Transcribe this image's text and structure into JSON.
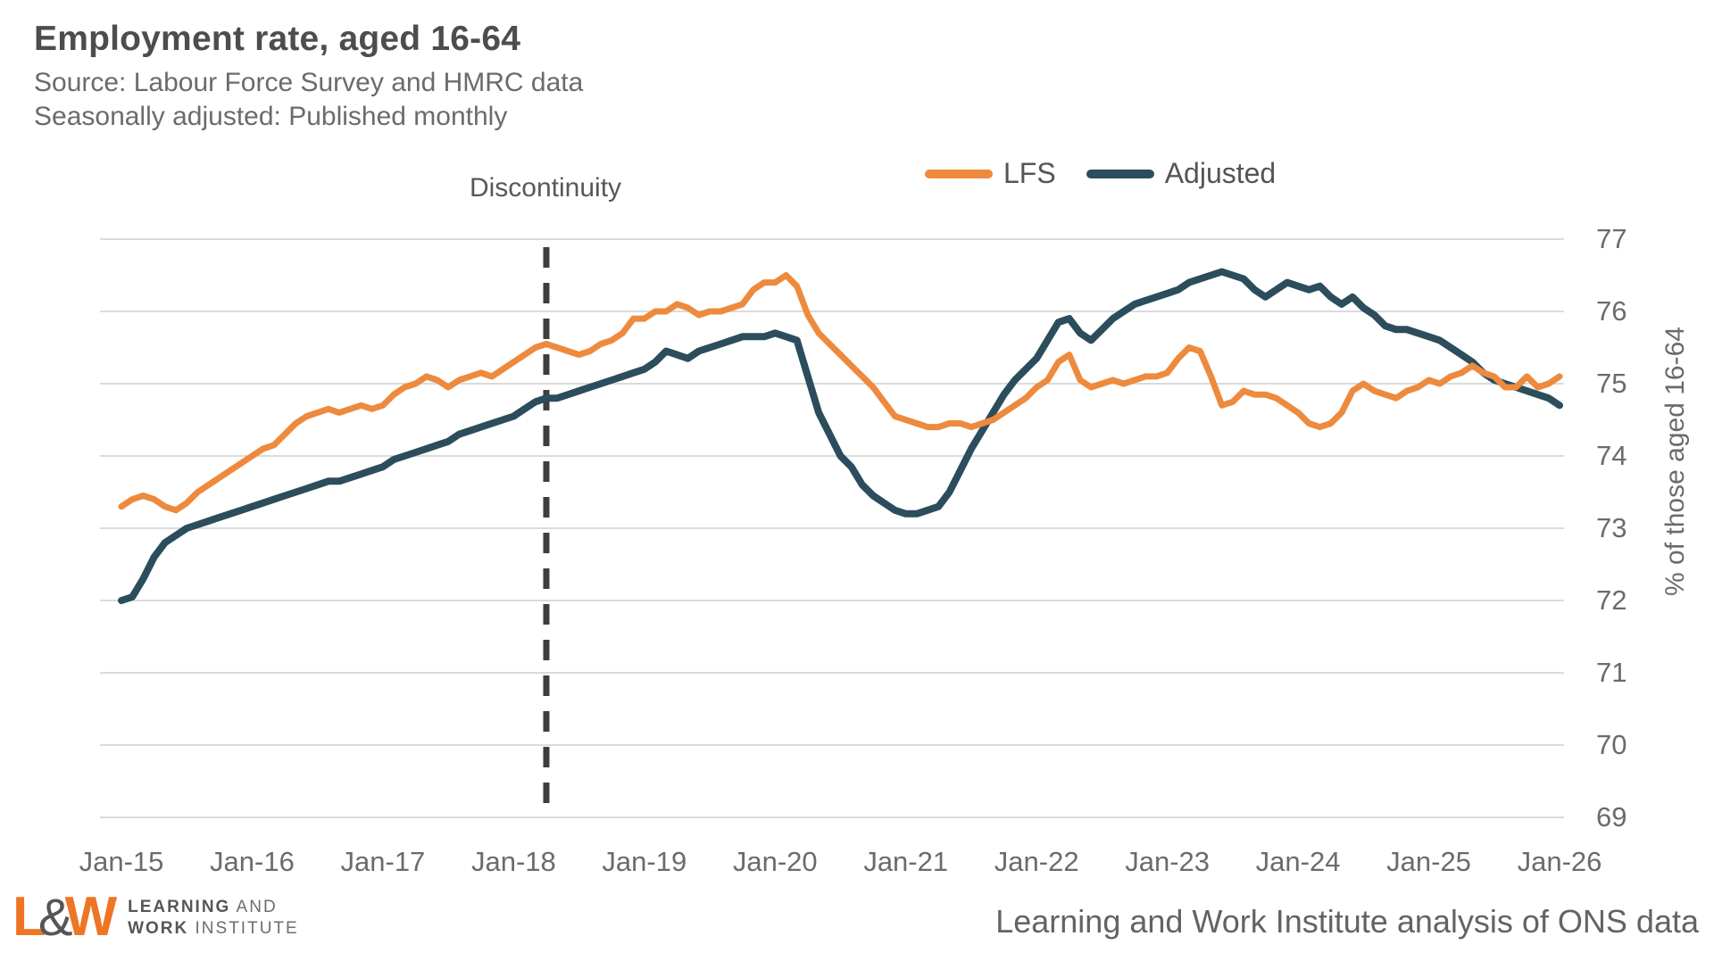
{
  "header": {
    "title": "Employment rate, aged 16-64",
    "subtitle1": "Source: Labour Force Survey and HMRC data",
    "subtitle2": "Seasonally adjusted: Published monthly"
  },
  "legend": {
    "items": [
      {
        "label": "LFS",
        "color": "#ED8A3E"
      },
      {
        "label": "Adjusted",
        "color": "#2B4D5C"
      }
    ]
  },
  "annotation": {
    "label": "Discontinuity",
    "date": "Apr-18",
    "month_index": 39
  },
  "chart_data": {
    "type": "line",
    "title": "Employment rate, aged 16-64",
    "xlabel": "",
    "ylabel": "% of those aged 16-64",
    "ylim": [
      69,
      77
    ],
    "y_ticks": [
      77,
      76,
      75,
      74,
      73,
      72,
      71,
      70,
      69
    ],
    "x_tick_labels": [
      "Jan-15",
      "Jan-16",
      "Jan-17",
      "Jan-18",
      "Jan-19",
      "Jan-20",
      "Jan-21",
      "Jan-22",
      "Jan-23",
      "Jan-24",
      "Jan-25",
      "Jan-26"
    ],
    "x_start": "Jan-2015",
    "cadence": "monthly",
    "grid": true,
    "legend_position": "top",
    "annotation": {
      "label": "Discontinuity",
      "x": "Apr-2018",
      "month_index": 39,
      "style": "dashed-vertical",
      "color": "#3E3E3E"
    },
    "gridline_color": "#DBDBDB",
    "series": [
      {
        "name": "LFS",
        "color": "#ED8A3E",
        "stroke_width": 7,
        "values": [
          73.3,
          73.4,
          73.45,
          73.4,
          73.3,
          73.25,
          73.35,
          73.5,
          73.6,
          73.7,
          73.8,
          73.9,
          74.0,
          74.1,
          74.15,
          74.3,
          74.45,
          74.55,
          74.6,
          74.65,
          74.6,
          74.65,
          74.7,
          74.65,
          74.7,
          74.85,
          74.95,
          75.0,
          75.1,
          75.05,
          74.95,
          75.05,
          75.1,
          75.15,
          75.1,
          75.2,
          75.3,
          75.4,
          75.5,
          75.55,
          75.5,
          75.45,
          75.4,
          75.45,
          75.55,
          75.6,
          75.7,
          75.9,
          75.9,
          76.0,
          76.0,
          76.1,
          76.05,
          75.95,
          76.0,
          76.0,
          76.05,
          76.1,
          76.3,
          76.4,
          76.4,
          76.5,
          76.35,
          75.95,
          75.7,
          75.55,
          75.4,
          75.25,
          75.1,
          74.95,
          74.75,
          74.55,
          74.5,
          74.45,
          74.4,
          74.4,
          74.45,
          74.45,
          74.4,
          74.45,
          74.5,
          74.6,
          74.7,
          74.8,
          74.95,
          75.05,
          75.3,
          75.4,
          75.05,
          74.95,
          75.0,
          75.05,
          75.0,
          75.05,
          75.1,
          75.1,
          75.15,
          75.35,
          75.5,
          75.45,
          75.1,
          74.7,
          74.75,
          74.9,
          74.85,
          74.85,
          74.8,
          74.7,
          74.6,
          74.45,
          74.4,
          74.45,
          74.6,
          74.9,
          75.0,
          74.9,
          74.85,
          74.8,
          74.9,
          74.95,
          75.05,
          75.0,
          75.1,
          75.15,
          75.25,
          75.15,
          75.1,
          74.95,
          74.95,
          75.1,
          74.95,
          75.0,
          75.1
        ]
      },
      {
        "name": "Adjusted",
        "color": "#2B4D5C",
        "stroke_width": 8,
        "values": [
          72.0,
          72.05,
          72.3,
          72.6,
          72.8,
          72.9,
          73.0,
          73.05,
          73.1,
          73.15,
          73.2,
          73.25,
          73.3,
          73.35,
          73.4,
          73.45,
          73.5,
          73.55,
          73.6,
          73.65,
          73.65,
          73.7,
          73.75,
          73.8,
          73.85,
          73.95,
          74.0,
          74.05,
          74.1,
          74.15,
          74.2,
          74.3,
          74.35,
          74.4,
          74.45,
          74.5,
          74.55,
          74.65,
          74.75,
          74.8,
          74.8,
          74.85,
          74.9,
          74.95,
          75.0,
          75.05,
          75.1,
          75.15,
          75.2,
          75.3,
          75.45,
          75.4,
          75.35,
          75.45,
          75.5,
          75.55,
          75.6,
          75.65,
          75.65,
          75.65,
          75.7,
          75.65,
          75.6,
          75.1,
          74.6,
          74.3,
          74.0,
          73.85,
          73.6,
          73.45,
          73.35,
          73.25,
          73.2,
          73.2,
          73.25,
          73.3,
          73.5,
          73.8,
          74.1,
          74.35,
          74.6,
          74.85,
          75.05,
          75.2,
          75.35,
          75.6,
          75.85,
          75.9,
          75.7,
          75.6,
          75.75,
          75.9,
          76.0,
          76.1,
          76.15,
          76.2,
          76.25,
          76.3,
          76.4,
          76.45,
          76.5,
          76.55,
          76.5,
          76.45,
          76.3,
          76.2,
          76.3,
          76.4,
          76.35,
          76.3,
          76.35,
          76.2,
          76.1,
          76.2,
          76.05,
          75.95,
          75.8,
          75.75,
          75.75,
          75.7,
          75.65,
          75.6,
          75.5,
          75.4,
          75.3,
          75.15,
          75.05,
          75.0,
          74.95,
          74.9,
          74.85,
          74.8,
          74.7
        ]
      }
    ]
  },
  "footer": {
    "logo": {
      "l": "L",
      "amp": "&",
      "w": "W",
      "line1_bold": "LEARNING",
      "line1_rest": " AND",
      "line2_bold": "WORK",
      "line2_rest": " INSTITUTE",
      "orange": "#EE7523",
      "gray": "#55565A"
    },
    "credit": "Learning and Work Institute analysis of ONS data"
  }
}
